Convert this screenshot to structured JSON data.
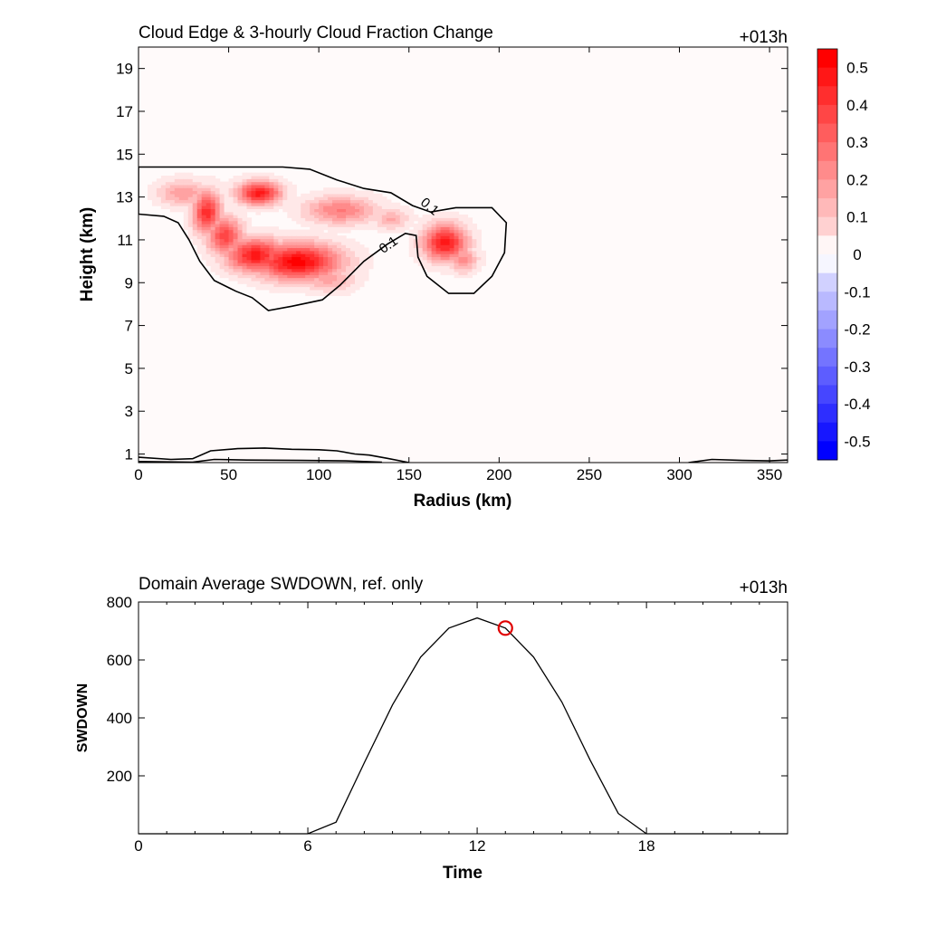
{
  "chart_data": [
    {
      "type": "heatmap",
      "title": "Cloud Edge & 3-hourly Cloud Fraction Change",
      "time_label": "+013h",
      "xlabel": "Radius (km)",
      "ylabel": "Height (km)",
      "xlim": [
        0,
        360
      ],
      "ylim": [
        0.6,
        20
      ],
      "x_ticks": [
        "0",
        "50",
        "100",
        "150",
        "200",
        "250",
        "300",
        "350"
      ],
      "y_ticks": [
        "1",
        "3",
        "5",
        "7",
        "9",
        "11",
        "13",
        "15",
        "17",
        "19"
      ],
      "colorbar": {
        "range": [
          -0.55,
          0.55
        ],
        "ticks": [
          "0.5",
          "0.4",
          "0.3",
          "0.2",
          "0.1",
          "0",
          "-0.1",
          "-0.2",
          "-0.3",
          "-0.4",
          "-0.5"
        ],
        "max_color": "#ff0000",
        "min_color": "#0000ff"
      },
      "contour_level_label": "0.1",
      "contour_label_positions": [
        [
          160,
          12.4
        ],
        [
          140,
          10.6
        ]
      ],
      "blobs": [
        {
          "x": 88,
          "y": 10.0,
          "rx": 24,
          "ry": 0.85,
          "v": 0.55
        },
        {
          "x": 65,
          "y": 10.3,
          "rx": 16,
          "ry": 0.8,
          "v": 0.5
        },
        {
          "x": 38,
          "y": 12.3,
          "rx": 8,
          "ry": 1.0,
          "v": 0.45
        },
        {
          "x": 48,
          "y": 11.2,
          "rx": 10,
          "ry": 0.9,
          "v": 0.4
        },
        {
          "x": 67,
          "y": 13.2,
          "rx": 12,
          "ry": 0.55,
          "v": 0.5
        },
        {
          "x": 25,
          "y": 13.2,
          "rx": 14,
          "ry": 0.6,
          "v": 0.22
        },
        {
          "x": 112,
          "y": 12.4,
          "rx": 20,
          "ry": 0.65,
          "v": 0.28
        },
        {
          "x": 170,
          "y": 10.9,
          "rx": 12,
          "ry": 0.85,
          "v": 0.5
        },
        {
          "x": 180,
          "y": 10.1,
          "rx": 8,
          "ry": 0.6,
          "v": 0.25
        },
        {
          "x": 105,
          "y": 9.2,
          "rx": 15,
          "ry": 0.6,
          "v": 0.2
        },
        {
          "x": 140,
          "y": 12.0,
          "rx": 10,
          "ry": 0.5,
          "v": 0.18
        }
      ],
      "contours": [
        {
          "closed": true,
          "points": [
            [
              0,
              14.4
            ],
            [
              80,
              14.4
            ],
            [
              95,
              14.3
            ],
            [
              110,
              13.8
            ],
            [
              125,
              13.4
            ],
            [
              140,
              13.2
            ],
            [
              152,
              12.6
            ],
            [
              162,
              12.3
            ],
            [
              176,
              12.5
            ],
            [
              196,
              12.5
            ],
            [
              204,
              11.8
            ],
            [
              203,
              10.4
            ],
            [
              196,
              9.3
            ],
            [
              186,
              8.5
            ],
            [
              172,
              8.5
            ],
            [
              160,
              9.3
            ],
            [
              155,
              10.2
            ],
            [
              154,
              11.2
            ],
            [
              148,
              11.3
            ],
            [
              138,
              10.8
            ],
            [
              125,
              10.0
            ],
            [
              112,
              8.9
            ],
            [
              102,
              8.2
            ],
            [
              85,
              7.9
            ],
            [
              72,
              7.7
            ],
            [
              63,
              8.3
            ],
            [
              54,
              8.6
            ],
            [
              42,
              9.1
            ],
            [
              34,
              10.0
            ],
            [
              28,
              11.0
            ],
            [
              22,
              11.8
            ],
            [
              14,
              12.1
            ],
            [
              0,
              12.2
            ]
          ]
        },
        {
          "closed": false,
          "points": [
            [
              0,
              0.85
            ],
            [
              18,
              0.75
            ],
            [
              30,
              0.78
            ],
            [
              40,
              1.15
            ],
            [
              55,
              1.25
            ],
            [
              70,
              1.28
            ],
            [
              85,
              1.22
            ],
            [
              100,
              1.2
            ],
            [
              110,
              1.15
            ],
            [
              120,
              1.0
            ],
            [
              128,
              0.95
            ],
            [
              138,
              0.8
            ],
            [
              150,
              0.6
            ]
          ]
        },
        {
          "closed": false,
          "points": [
            [
              0,
              0.65
            ],
            [
              30,
              0.62
            ],
            [
              42,
              0.75
            ],
            [
              60,
              0.72
            ],
            [
              90,
              0.7
            ],
            [
              115,
              0.68
            ],
            [
              135,
              0.62
            ]
          ]
        },
        {
          "closed": false,
          "points": [
            [
              305,
              0.6
            ],
            [
              318,
              0.75
            ],
            [
              335,
              0.7
            ],
            [
              350,
              0.68
            ],
            [
              360,
              0.72
            ]
          ]
        }
      ]
    },
    {
      "type": "line",
      "title": "Domain Average SWDOWN, ref. only",
      "time_label": "+013h",
      "xlabel": "Time",
      "ylabel": "SWDOWN",
      "xlim": [
        0,
        23
      ],
      "ylim": [
        0,
        800
      ],
      "x_ticks": [
        "0",
        "6",
        "12",
        "18"
      ],
      "y_ticks": [
        "200",
        "400",
        "600",
        "800"
      ],
      "x": [
        0,
        1,
        2,
        3,
        4,
        5,
        6,
        7,
        8,
        9,
        10,
        11,
        12,
        13,
        14,
        15,
        16,
        17,
        18,
        19,
        20,
        21,
        22,
        23
      ],
      "values": [
        0,
        0,
        0,
        0,
        0,
        0,
        0,
        40,
        245,
        445,
        610,
        710,
        745,
        710,
        610,
        455,
        255,
        70,
        0,
        0,
        0,
        0,
        0,
        0
      ],
      "marker": {
        "x": 13,
        "y": 710,
        "color": "#e00000"
      }
    }
  ]
}
